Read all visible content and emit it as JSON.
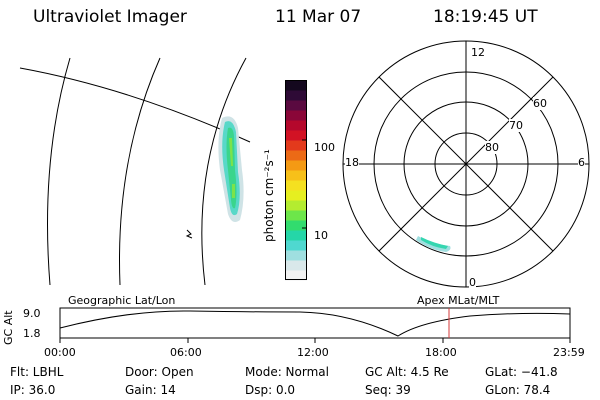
{
  "header": {
    "title": "Ultraviolet Imager",
    "date": "11 Mar 07",
    "time": "18:19:45 UT"
  },
  "colorbar": {
    "label": "photon cm⁻²s⁻¹",
    "ticks": [
      "100",
      "10"
    ],
    "colors": [
      "#f2f2f2",
      "#d9e8ea",
      "#9fdfe0",
      "#4fd8d0",
      "#25d6a8",
      "#32dc6e",
      "#6de64a",
      "#b4ec30",
      "#e6ef20",
      "#f5e020",
      "#f7c019",
      "#f49a14",
      "#ec6a16",
      "#e33a1c",
      "#d21224",
      "#b5082c",
      "#8a0638",
      "#5a0a40",
      "#2e0a36",
      "#14081e"
    ]
  },
  "polar": {
    "lat_labels": [
      "60",
      "70",
      "80"
    ],
    "mlt_labels": [
      "12",
      "18",
      "6",
      "0"
    ]
  },
  "timeline": {
    "ylabel": "GC Alt",
    "y_ticks": [
      "9.0",
      "1.8"
    ],
    "left_label": "Geographic Lat/Lon",
    "right_label": "Apex MLat/MLT",
    "x_ticks": [
      "00:00",
      "06:00",
      "12:00",
      "18:00",
      "23:59"
    ],
    "marker_color": "#d43a3a"
  },
  "info": {
    "filter": "Flt: LBHL",
    "door": "Door: Open",
    "mode": "Mode: Normal",
    "gc_alt": "GC Alt: 4.5 Re",
    "glat": "GLat: −41.8",
    "ip": "IP: 36.0",
    "gain": "Gain: 14",
    "dsp": "Dsp:     0.0",
    "seq": "Seq: 39",
    "glon": "GLon:  78.4"
  }
}
